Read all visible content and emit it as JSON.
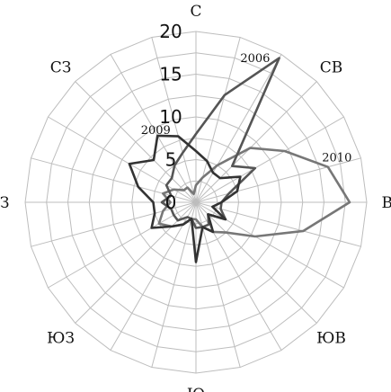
{
  "chart_data": {
    "type": "radar",
    "title": "",
    "directions": [
      "С",
      "",
      "",
      "СВ",
      "",
      "",
      "В",
      "",
      "",
      "ЮВ",
      "",
      "",
      "Ю",
      "",
      "",
      "ЮЗ",
      "",
      "",
      "З",
      "",
      "",
      "СЗ",
      "",
      ""
    ],
    "r_ticks": [
      "0",
      "5",
      "10",
      "15",
      "20"
    ],
    "r_max": 20,
    "grid": true,
    "colors": {
      "grid": "#bdbdbd",
      "series": [
        "#777777",
        "#555555",
        "#333333"
      ]
    },
    "series": [
      {
        "name": "2010",
        "values": [
          2,
          3,
          5,
          9,
          12,
          16,
          18,
          13,
          8,
          5,
          4,
          3,
          2,
          2,
          3,
          4,
          5,
          4,
          3,
          4,
          3,
          2,
          2,
          1
        ]
      },
      {
        "name": "2006",
        "values": [
          8,
          13,
          19.5,
          6,
          8,
          4,
          3,
          3,
          4,
          2,
          3,
          3,
          3,
          2,
          2,
          3,
          3,
          3,
          4,
          3,
          4,
          4,
          5,
          6
        ]
      },
      {
        "name": "2009",
        "values": [
          6,
          5,
          4,
          4,
          6,
          5,
          3,
          2,
          4,
          2,
          4,
          3,
          7,
          2,
          3,
          4,
          6,
          5,
          5,
          7,
          9,
          7,
          9,
          8
        ]
      }
    ]
  }
}
